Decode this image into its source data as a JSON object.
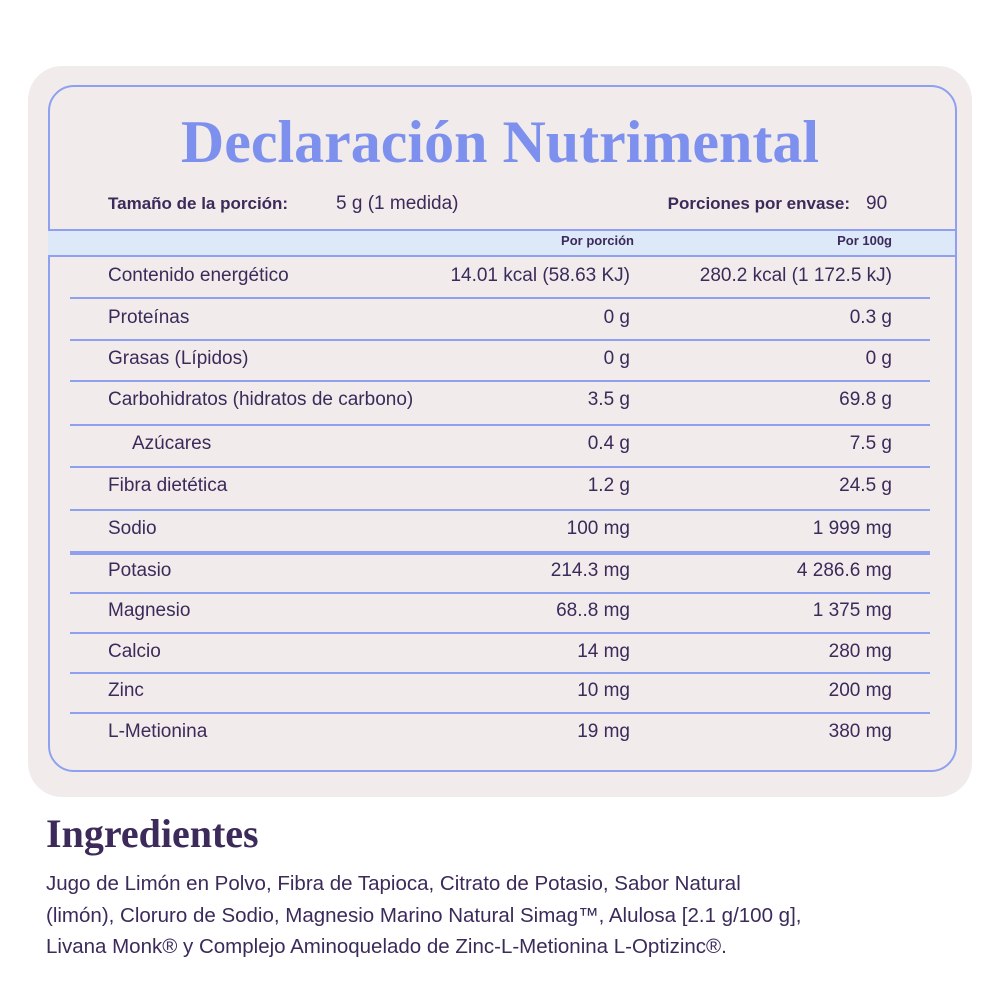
{
  "header": {
    "title": "Declaración Nutrimental"
  },
  "serving": {
    "label": "Tamaño de la porción:",
    "value": "5 g (1 medida)"
  },
  "servings": {
    "label": "Porciones por envase:",
    "value": "90"
  },
  "table": {
    "columns": [
      "Por porción",
      "Por 100g"
    ],
    "rows": [
      [
        "Contenido energético",
        "14.01 kcal (58.63 KJ)",
        "280.2 kcal (1 172.5 kJ)"
      ],
      [
        "Proteínas",
        "0 g",
        "0.3 g"
      ],
      [
        "Grasas (Lípidos)",
        "0 g",
        "0 g"
      ],
      [
        "Carbohidratos (hidratos de carbono)",
        "3.5 g",
        "69.8 g"
      ],
      [
        "Azúcares",
        "0.4 g",
        "7.5 g"
      ],
      [
        "Fibra dietética",
        "1.2 g",
        "24.5 g"
      ],
      [
        "Sodio",
        "100 mg",
        "1 999 mg"
      ],
      [
        "Potasio",
        "214.3 mg",
        "4 286.6 mg"
      ],
      [
        "Magnesio",
        "68..8 mg",
        "1 375 mg"
      ],
      [
        "Calcio",
        "14 mg",
        "280 mg"
      ],
      [
        "Zinc",
        "10 mg",
        "200 mg"
      ],
      [
        "L-Metionina",
        "19 mg",
        "380 mg"
      ]
    ]
  },
  "ingredients": {
    "title": "Ingredientes",
    "lines": [
      "Jugo de Limón en Polvo, Fibra de Tapioca, Citrato de Potasio, Sabor Natural",
      "(limón), Cloruro de Sodio, Magnesio Marino Natural Simag™, Alulosa [2.1 g/100 g],",
      "Livana Monk® y Complejo Aminoquelado de Zinc-L-Metionina L-Optizinc®."
    ]
  }
}
